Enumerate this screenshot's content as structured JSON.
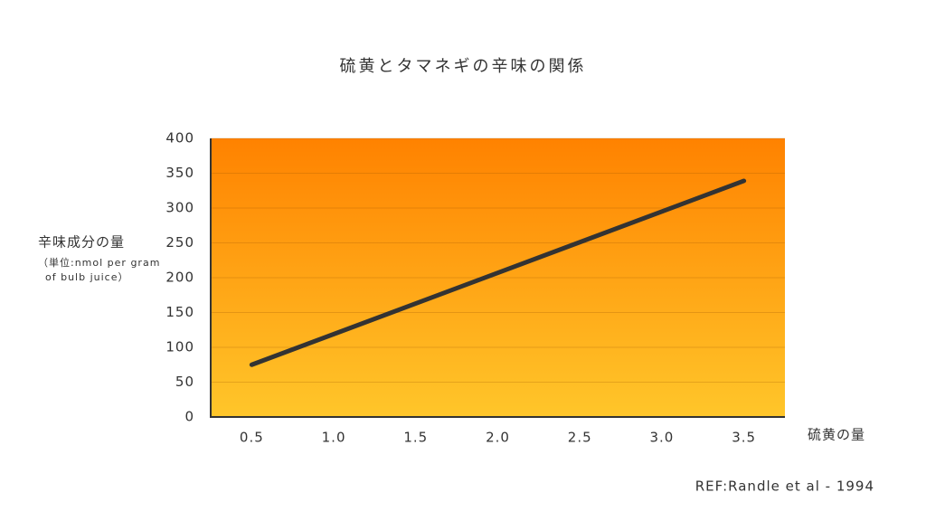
{
  "chart_data": {
    "type": "line",
    "title": "硫黄とタマネギの辛味の関係",
    "y_label": "辛味成分の量",
    "y_label_note": [
      "（単位:nmol per gram",
      "of bulb juice）"
    ],
    "x_label": "硫黄の量",
    "source": "REF:Randle et al - 1994",
    "x": [
      0.5,
      3.5
    ],
    "series": [
      {
        "color": "#333333",
        "values": [
          75,
          339
        ]
      }
    ],
    "xlim": [
      0.25,
      3.75
    ],
    "xticks": [
      0.5,
      {
        "value": 1,
        "label": "1.0"
      },
      1.5,
      {
        "value": 2,
        "label": "2.0"
      },
      2.5,
      {
        "value": 3,
        "label": "3.0"
      },
      3.5
    ],
    "ylim": [
      0,
      400
    ],
    "yticks": [
      0,
      50,
      100,
      150,
      200,
      250,
      300,
      350,
      400
    ],
    "grid": true,
    "background": [
      "#ff8200",
      "#ffc62a"
    ]
  }
}
